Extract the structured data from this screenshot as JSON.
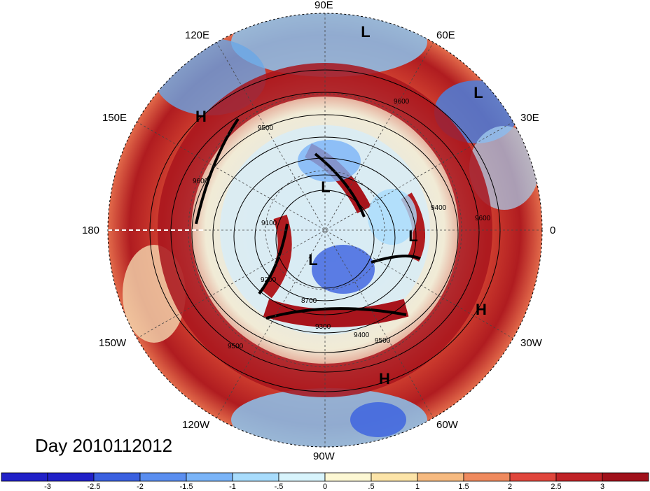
{
  "map": {
    "projection": "north-polar-stereographic",
    "longitude_labels": [
      "90E",
      "60E",
      "30E",
      "0",
      "30W",
      "60W",
      "90W",
      "120W",
      "150W",
      "180",
      "150E",
      "120E"
    ],
    "contour_labels": [
      "9600",
      "9500",
      "9400",
      "9300",
      "9200",
      "9100",
      "8700",
      "9600",
      "9500",
      "9400",
      "9500",
      "9600"
    ],
    "pressure_centers": [
      {
        "label": "L",
        "color": "#000000"
      },
      {
        "label": "L",
        "color": "#000000"
      },
      {
        "label": "H",
        "color": "#000000"
      },
      {
        "label": "L",
        "color": "#000000"
      },
      {
        "label": "L",
        "color": "#000000"
      },
      {
        "label": "L",
        "color": "#000000"
      },
      {
        "label": "H",
        "color": "#000000"
      },
      {
        "label": "H",
        "color": "#000000"
      }
    ],
    "date_label": "Day 2010112012"
  },
  "colorbar": {
    "tick_labels": [
      "-3",
      "-2.5",
      "-2",
      "-1.5",
      "-1",
      "-.5",
      "0",
      ".5",
      "1",
      "1.5",
      "2",
      "2.5",
      "3"
    ],
    "colors": [
      "#2020c8",
      "#3a60e0",
      "#5a8ef0",
      "#7ab4f8",
      "#a8dcfc",
      "#d8f4fc",
      "#fdf8d4",
      "#fce4a8",
      "#f6ba80",
      "#ef8a5e",
      "#e0463c",
      "#c02226",
      "#a0101a"
    ]
  }
}
